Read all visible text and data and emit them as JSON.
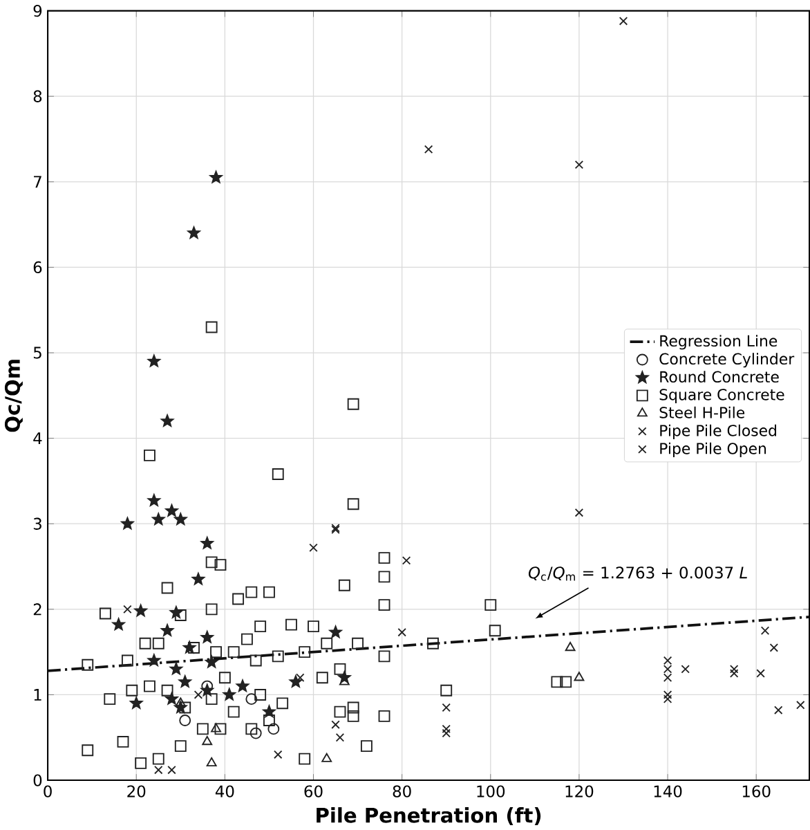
{
  "chart_data": {
    "type": "scatter",
    "xlabel": "Pile Penetration (ft)",
    "ylabel": "Qc/Qm",
    "xlim": [
      0,
      172
    ],
    "ylim": [
      0,
      9
    ],
    "xticks": [
      0,
      20,
      40,
      60,
      80,
      100,
      120,
      140,
      160
    ],
    "yticks": [
      0,
      1,
      2,
      3,
      4,
      5,
      6,
      7,
      8,
      9
    ],
    "grid": true,
    "legend": "right",
    "annotations": [
      "*Q*$_{c}$/*Q*$_{m}$ = 1.2763 + 0.0037 *L*"
    ],
    "series": [
      {
        "name": "Regression Line",
        "type": "line",
        "color": "#111111",
        "line_style": "dashed",
        "marker": "none",
        "x": [
          0,
          172
        ],
        "values": [
          1.28,
          1.91
        ]
      },
      {
        "name": "Concrete Cylinder",
        "color": "#222222",
        "marker": "circle",
        "x": [
          47,
          51,
          46,
          36,
          31
        ],
        "values": [
          0.55,
          0.6,
          0.95,
          1.1,
          0.7
        ]
      },
      {
        "name": "Round Concrete",
        "color": "#222222",
        "marker": "star",
        "x": [
          38,
          33,
          24,
          27,
          24,
          18,
          25,
          28,
          30,
          36,
          34,
          21,
          16,
          29,
          36,
          27,
          24,
          32,
          29,
          31,
          20,
          28,
          30,
          36,
          41,
          44,
          56,
          65,
          67,
          37,
          50
        ],
        "values": [
          7.05,
          6.4,
          4.9,
          4.2,
          3.27,
          3.0,
          3.05,
          3.15,
          3.05,
          2.77,
          2.35,
          1.98,
          1.82,
          1.96,
          1.67,
          1.75,
          1.4,
          1.55,
          1.3,
          1.15,
          0.9,
          0.95,
          0.85,
          1.05,
          1.0,
          1.1,
          1.15,
          1.73,
          1.2,
          1.38,
          0.8
        ]
      },
      {
        "name": "Square Concrete",
        "color": "#222222",
        "marker": "square",
        "x": [
          37,
          69,
          23,
          52,
          69,
          67,
          76,
          76,
          76,
          37,
          39,
          27,
          30,
          37,
          43,
          46,
          50,
          48,
          55,
          60,
          9,
          13,
          18,
          22,
          25,
          33,
          38,
          42,
          40,
          45,
          47,
          52,
          58,
          63,
          66,
          70,
          76,
          87,
          100,
          101,
          9,
          17,
          21,
          25,
          30,
          35,
          39,
          42,
          46,
          50,
          53,
          58,
          66,
          69,
          72,
          76,
          90,
          115,
          117,
          14,
          19,
          23,
          27,
          31,
          37,
          48,
          62,
          69
        ],
        "values": [
          5.3,
          4.4,
          3.8,
          3.58,
          3.23,
          2.28,
          2.6,
          2.38,
          2.05,
          2.55,
          2.52,
          2.25,
          1.93,
          2.0,
          2.12,
          2.2,
          2.2,
          1.8,
          1.82,
          1.8,
          1.35,
          1.95,
          1.4,
          1.6,
          1.6,
          1.55,
          1.5,
          1.5,
          1.2,
          1.65,
          1.4,
          1.45,
          1.5,
          1.6,
          1.3,
          1.6,
          1.45,
          1.6,
          2.05,
          1.75,
          0.35,
          0.45,
          0.2,
          0.25,
          0.4,
          0.6,
          0.6,
          0.8,
          0.6,
          0.7,
          0.9,
          0.25,
          0.8,
          0.75,
          0.4,
          0.75,
          1.05,
          1.15,
          1.15,
          0.95,
          1.05,
          1.1,
          1.05,
          0.85,
          0.95,
          1.0,
          1.2,
          0.85
        ]
      },
      {
        "name": "Steel H-Pile",
        "color": "#222222",
        "marker": "triangle",
        "x": [
          36,
          37,
          30,
          38,
          63,
          67,
          118,
          120
        ],
        "values": [
          0.45,
          0.2,
          0.9,
          0.6,
          0.25,
          1.15,
          1.55,
          1.2
        ]
      },
      {
        "name": "Pipe Pile Closed",
        "color": "#222222",
        "marker": "cross",
        "x": [
          120,
          120,
          18,
          60,
          65,
          81,
          80,
          90,
          90,
          90,
          65,
          66,
          140,
          140,
          140,
          144,
          155,
          155,
          162,
          164,
          161,
          165,
          25,
          28,
          57
        ],
        "values": [
          7.2,
          3.13,
          2.0,
          2.72,
          2.93,
          2.57,
          1.73,
          0.85,
          0.6,
          0.55,
          0.65,
          0.5,
          1.4,
          1.3,
          1.2,
          1.3,
          1.3,
          1.25,
          1.75,
          1.55,
          1.25,
          0.82,
          0.12,
          0.12,
          1.2
        ]
      },
      {
        "name": "Pipe Pile Open",
        "color": "#222222",
        "marker": "cross",
        "x": [
          130,
          86,
          65,
          140,
          140,
          52,
          170,
          34
        ],
        "values": [
          8.88,
          7.38,
          2.95,
          1.0,
          0.95,
          0.3,
          0.88,
          1.0
        ]
      }
    ]
  }
}
